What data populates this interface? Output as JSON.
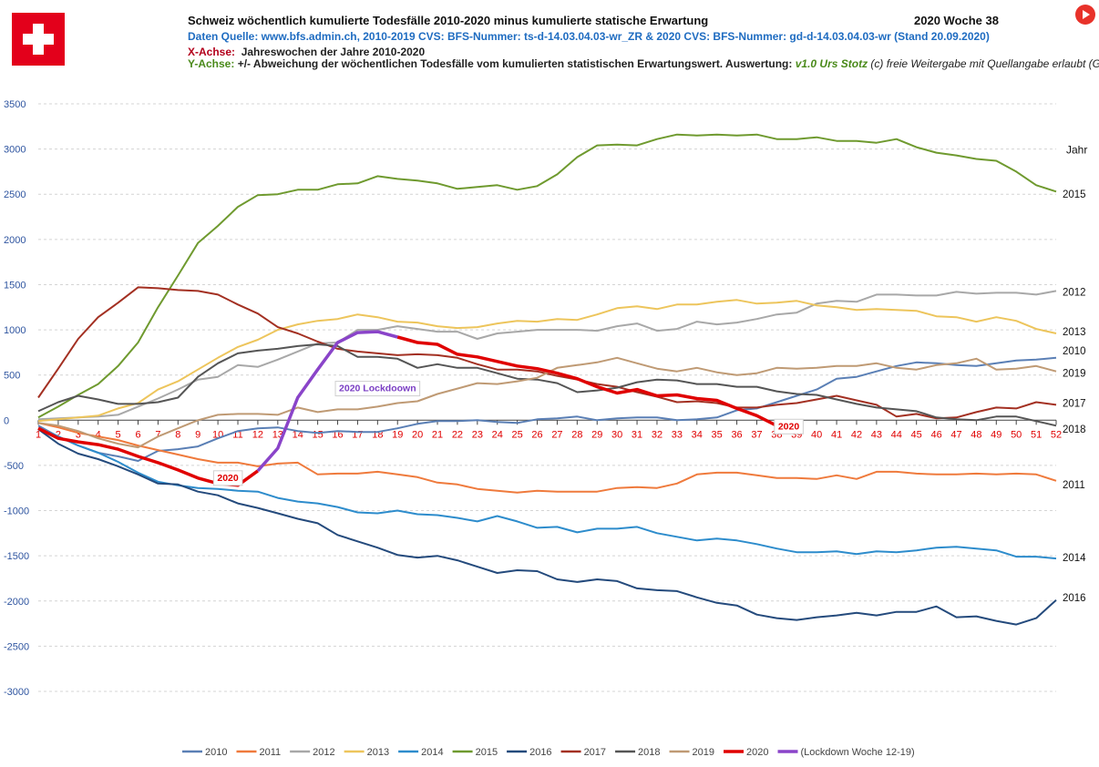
{
  "header": {
    "title": "Schweiz wöchentlich kumulierte Todesfälle 2010-2020 minus kumulierte statische Erwartung",
    "year_week": "2020  Woche 38",
    "source_line": "Daten Quelle: www.bfs.admin.ch,        2010-2019 CVS: BFS-Nummer: ts-d-14.03.04.03-wr_ZR   &   2020 CVS: BFS-Nummer: gd-d-14.03.04.03-wr  (Stand 20.09.2020)",
    "x_axis_label": "X-Achse:",
    "x_axis_text": "Jahreswochen der Jahre 2010-2020",
    "y_axis_label": "Y-Achse:",
    "y_axis_text": "+/- Abweichung der wöchentlichen Todesfälle vom kumulierten statistischen Erwartungswert.  Auswertung:",
    "author": "v1.0 Urs Stotz",
    "license": "(c) freie Weitergabe mit Quellangabe erlaubt (GPL)"
  },
  "icons": {
    "flag": "swiss-flag-icon",
    "play": "play-button-icon"
  },
  "chart_data": {
    "type": "line",
    "xlabel": "Jahreswochen der Jahre 2010-2020",
    "ylabel": "+/- Abweichung der wöchentlichen Todesfälle vom kumulierten statistischen Erwartungswert",
    "ylim": [
      -3000,
      3500
    ],
    "yticks": [
      3500,
      3000,
      2500,
      2000,
      1500,
      1000,
      500,
      0,
      -500,
      -1000,
      -1500,
      -2000,
      -2500,
      -3000
    ],
    "xticks": [
      1,
      2,
      3,
      4,
      5,
      6,
      7,
      8,
      9,
      10,
      11,
      12,
      13,
      14,
      15,
      16,
      17,
      18,
      19,
      20,
      21,
      22,
      23,
      24,
      25,
      26,
      27,
      28,
      29,
      30,
      31,
      32,
      33,
      34,
      35,
      36,
      37,
      38,
      39,
      40,
      41,
      42,
      43,
      44,
      45,
      46,
      47,
      48,
      49,
      50,
      51,
      52
    ],
    "grid": "horizontal-dashed",
    "legend_position": "bottom",
    "right_header": "Jahr",
    "annotations": [
      {
        "text": "2020 Lockdoown",
        "x": 18,
        "y": 360,
        "color": "#7b3fc4"
      },
      {
        "text": "2020",
        "x": 10.5,
        "y": -630,
        "color": "#e00000"
      },
      {
        "text": "2020",
        "x": 38.6,
        "y": -60,
        "color": "#e00000"
      }
    ],
    "series": [
      {
        "name": "2010",
        "color": "#5a7fb5",
        "width": 2,
        "end_label": "2010",
        "end_label_y": 770,
        "values": [
          -60,
          -180,
          -280,
          -360,
          -400,
          -450,
          -340,
          -320,
          -290,
          -200,
          -120,
          -90,
          -80,
          -120,
          -140,
          -120,
          -130,
          -130,
          -90,
          -40,
          -10,
          -10,
          0,
          -20,
          -30,
          10,
          20,
          40,
          0,
          20,
          30,
          30,
          0,
          10,
          30,
          110,
          130,
          200,
          270,
          340,
          460,
          480,
          540,
          600,
          640,
          630,
          610,
          600,
          630,
          660,
          670,
          690
        ]
      },
      {
        "name": "2011",
        "color": "#ef7a3c",
        "width": 2,
        "end_label": "2011",
        "end_label_y": -710,
        "values": [
          -30,
          -80,
          -140,
          -180,
          -220,
          -280,
          -330,
          -380,
          -430,
          -470,
          -470,
          -510,
          -480,
          -470,
          -600,
          -590,
          -590,
          -570,
          -600,
          -630,
          -690,
          -710,
          -760,
          -780,
          -800,
          -780,
          -790,
          -790,
          -790,
          -750,
          -740,
          -750,
          -700,
          -600,
          -580,
          -580,
          -610,
          -640,
          -640,
          -650,
          -610,
          -650,
          -570,
          -570,
          -590,
          -600,
          -600,
          -590,
          -600,
          -590,
          -600,
          -670
        ]
      },
      {
        "name": "2012",
        "color": "#a8a8a8",
        "width": 2,
        "end_label": "2012",
        "end_label_y": 1420,
        "values": [
          10,
          20,
          30,
          40,
          60,
          150,
          240,
          340,
          450,
          480,
          610,
          590,
          670,
          760,
          850,
          860,
          1000,
          1000,
          1040,
          1010,
          980,
          980,
          900,
          960,
          980,
          1000,
          1000,
          1000,
          990,
          1040,
          1070,
          990,
          1010,
          1090,
          1060,
          1080,
          1120,
          1170,
          1190,
          1290,
          1320,
          1310,
          1390,
          1390,
          1380,
          1380,
          1420,
          1400,
          1410,
          1410,
          1390,
          1430
        ]
      },
      {
        "name": "2013",
        "color": "#edc55c",
        "width": 2,
        "end_label": "2013",
        "end_label_y": 980,
        "values": [
          -10,
          10,
          30,
          50,
          130,
          190,
          340,
          430,
          560,
          690,
          810,
          890,
          1000,
          1060,
          1100,
          1120,
          1170,
          1140,
          1090,
          1080,
          1040,
          1020,
          1030,
          1070,
          1100,
          1090,
          1120,
          1110,
          1170,
          1240,
          1260,
          1230,
          1280,
          1280,
          1310,
          1330,
          1290,
          1300,
          1320,
          1270,
          1250,
          1220,
          1230,
          1220,
          1210,
          1150,
          1140,
          1090,
          1140,
          1100,
          1010,
          960
        ]
      },
      {
        "name": "2014",
        "color": "#2d8ccc",
        "width": 2,
        "end_label": "2014",
        "end_label_y": -1520,
        "values": [
          -90,
          -180,
          -280,
          -360,
          -460,
          -580,
          -680,
          -720,
          -750,
          -760,
          -780,
          -790,
          -860,
          -900,
          -920,
          -960,
          -1020,
          -1030,
          -1000,
          -1040,
          -1050,
          -1080,
          -1120,
          -1060,
          -1120,
          -1190,
          -1180,
          -1240,
          -1200,
          -1200,
          -1180,
          -1250,
          -1290,
          -1330,
          -1310,
          -1330,
          -1370,
          -1420,
          -1460,
          -1460,
          -1450,
          -1480,
          -1450,
          -1460,
          -1440,
          -1410,
          -1400,
          -1420,
          -1440,
          -1510,
          -1510,
          -1530
        ]
      },
      {
        "name": "2015",
        "color": "#6f9a2f",
        "width": 2,
        "end_label": "2015",
        "end_label_y": 2500,
        "values": [
          30,
          150,
          280,
          400,
          600,
          860,
          1250,
          1600,
          1960,
          2150,
          2360,
          2490,
          2500,
          2550,
          2550,
          2610,
          2620,
          2700,
          2670,
          2650,
          2620,
          2560,
          2580,
          2600,
          2550,
          2590,
          2720,
          2910,
          3040,
          3050,
          3040,
          3110,
          3160,
          3150,
          3160,
          3150,
          3160,
          3110,
          3110,
          3130,
          3090,
          3090,
          3070,
          3110,
          3020,
          2960,
          2930,
          2890,
          2870,
          2750,
          2600,
          2530
        ]
      },
      {
        "name": "2016",
        "color": "#244a7c",
        "width": 2,
        "end_label": "2016",
        "end_label_y": -1960,
        "values": [
          -100,
          -260,
          -370,
          -430,
          -510,
          -600,
          -700,
          -710,
          -790,
          -830,
          -920,
          -970,
          -1030,
          -1090,
          -1140,
          -1270,
          -1340,
          -1410,
          -1490,
          -1520,
          -1500,
          -1550,
          -1620,
          -1690,
          -1660,
          -1670,
          -1760,
          -1790,
          -1760,
          -1780,
          -1860,
          -1880,
          -1890,
          -1960,
          -2020,
          -2050,
          -2150,
          -2190,
          -2210,
          -2180,
          -2160,
          -2130,
          -2160,
          -2120,
          -2120,
          -2060,
          -2180,
          -2170,
          -2220,
          -2260,
          -2190,
          -1990
        ]
      },
      {
        "name": "2017",
        "color": "#a33022",
        "width": 2,
        "end_label": "2017",
        "end_label_y": 190,
        "values": [
          250,
          570,
          900,
          1140,
          1300,
          1470,
          1460,
          1440,
          1430,
          1390,
          1280,
          1180,
          1030,
          960,
          870,
          790,
          760,
          740,
          720,
          730,
          720,
          690,
          620,
          560,
          560,
          540,
          490,
          450,
          400,
          370,
          310,
          260,
          200,
          210,
          190,
          140,
          140,
          170,
          190,
          230,
          270,
          220,
          170,
          40,
          70,
          20,
          30,
          90,
          140,
          130,
          200,
          170
        ]
      },
      {
        "name": "2018",
        "color": "#555555",
        "width": 2,
        "end_label": "2018",
        "end_label_y": -100,
        "values": [
          100,
          200,
          270,
          230,
          180,
          180,
          200,
          250,
          480,
          630,
          740,
          770,
          790,
          820,
          840,
          820,
          700,
          700,
          680,
          580,
          620,
          580,
          580,
          520,
          460,
          450,
          410,
          310,
          330,
          360,
          420,
          450,
          440,
          400,
          400,
          370,
          370,
          320,
          290,
          280,
          230,
          180,
          140,
          120,
          100,
          30,
          10,
          0,
          40,
          40,
          -10,
          -60
        ]
      },
      {
        "name": "2019",
        "color": "#bf9a74",
        "width": 2,
        "end_label": "2019",
        "end_label_y": 520,
        "values": [
          -30,
          -60,
          -120,
          -200,
          -260,
          -300,
          -180,
          -90,
          0,
          60,
          70,
          70,
          60,
          140,
          90,
          120,
          120,
          150,
          190,
          210,
          290,
          350,
          410,
          400,
          430,
          470,
          580,
          610,
          640,
          690,
          630,
          570,
          540,
          580,
          530,
          500,
          520,
          580,
          570,
          580,
          600,
          600,
          630,
          580,
          560,
          610,
          630,
          680,
          560,
          570,
          600,
          540
        ]
      },
      {
        "name": "2020",
        "color": "#e00000",
        "width": 3.5,
        "values": [
          -90,
          -200,
          -240,
          -270,
          -320,
          -400,
          -470,
          -550,
          -640,
          -700,
          -720,
          -560,
          null,
          null,
          null,
          null,
          null,
          null,
          920,
          860,
          840,
          730,
          700,
          650,
          600,
          570,
          520,
          460,
          370,
          300,
          340,
          270,
          280,
          240,
          220,
          130,
          50,
          -60
        ]
      },
      {
        "name": "(Lockdown Woche 12-19)",
        "color": "#8a44c9",
        "width": 3.5,
        "values": [
          null,
          null,
          null,
          null,
          null,
          null,
          null,
          null,
          null,
          null,
          null,
          -560,
          -310,
          250,
          560,
          860,
          970,
          980,
          920
        ]
      }
    ]
  }
}
